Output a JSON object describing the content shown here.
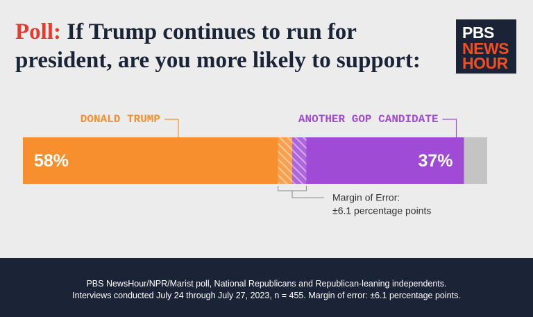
{
  "chart_data": {
    "type": "stacked_bar",
    "title_lead": "Poll:",
    "title": "If Trump continues to run for president, are you more likely to support:",
    "xlim": [
      0,
      100
    ],
    "series": [
      {
        "name": "DONALD TRUMP",
        "color": "#f78f2f",
        "values": [
          58
        ],
        "value_labels": [
          "58%"
        ]
      },
      {
        "name": "ANOTHER GOP CANDIDATE",
        "color": "#a04bd6",
        "values": [
          37
        ],
        "value_labels": [
          "37%"
        ]
      }
    ],
    "margin_of_error": 6.1,
    "annotation": [
      "Margin of Error:",
      "±6.1 percentage points"
    ]
  },
  "logo": {
    "lines": [
      "PBS",
      "NEWS",
      "HOUR"
    ]
  },
  "footer": {
    "lines": [
      "PBS NewsHour/NPR/Marist poll, National Republicans and Republican-leaning independents.",
      "Interviews conducted July 24 through July 27, 2023, n = 455. Margin of error: ±6.1 percentage points."
    ]
  }
}
